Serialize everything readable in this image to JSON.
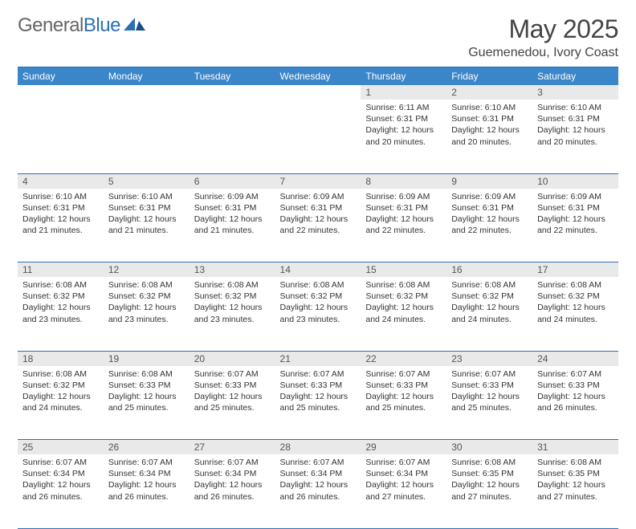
{
  "brand": {
    "general": "General",
    "blue": "Blue"
  },
  "title": "May 2025",
  "location": "Guemenedou, Ivory Coast",
  "colors": {
    "header_bg": "#3b86c8",
    "rule": "#2a6fb5",
    "daynum_bg": "#e9e9e9",
    "logo_blue": "#2a6fb5",
    "logo_dark": "#1a4f85"
  },
  "weekdays": [
    "Sunday",
    "Monday",
    "Tuesday",
    "Wednesday",
    "Thursday",
    "Friday",
    "Saturday"
  ],
  "weeks": [
    [
      {
        "n": "",
        "sr": "",
        "ss": "",
        "dl": ""
      },
      {
        "n": "",
        "sr": "",
        "ss": "",
        "dl": ""
      },
      {
        "n": "",
        "sr": "",
        "ss": "",
        "dl": ""
      },
      {
        "n": "",
        "sr": "",
        "ss": "",
        "dl": ""
      },
      {
        "n": "1",
        "sr": "6:11 AM",
        "ss": "6:31 PM",
        "dl": "12 hours and 20 minutes."
      },
      {
        "n": "2",
        "sr": "6:10 AM",
        "ss": "6:31 PM",
        "dl": "12 hours and 20 minutes."
      },
      {
        "n": "3",
        "sr": "6:10 AM",
        "ss": "6:31 PM",
        "dl": "12 hours and 20 minutes."
      }
    ],
    [
      {
        "n": "4",
        "sr": "6:10 AM",
        "ss": "6:31 PM",
        "dl": "12 hours and 21 minutes."
      },
      {
        "n": "5",
        "sr": "6:10 AM",
        "ss": "6:31 PM",
        "dl": "12 hours and 21 minutes."
      },
      {
        "n": "6",
        "sr": "6:09 AM",
        "ss": "6:31 PM",
        "dl": "12 hours and 21 minutes."
      },
      {
        "n": "7",
        "sr": "6:09 AM",
        "ss": "6:31 PM",
        "dl": "12 hours and 22 minutes."
      },
      {
        "n": "8",
        "sr": "6:09 AM",
        "ss": "6:31 PM",
        "dl": "12 hours and 22 minutes."
      },
      {
        "n": "9",
        "sr": "6:09 AM",
        "ss": "6:31 PM",
        "dl": "12 hours and 22 minutes."
      },
      {
        "n": "10",
        "sr": "6:09 AM",
        "ss": "6:31 PM",
        "dl": "12 hours and 22 minutes."
      }
    ],
    [
      {
        "n": "11",
        "sr": "6:08 AM",
        "ss": "6:32 PM",
        "dl": "12 hours and 23 minutes."
      },
      {
        "n": "12",
        "sr": "6:08 AM",
        "ss": "6:32 PM",
        "dl": "12 hours and 23 minutes."
      },
      {
        "n": "13",
        "sr": "6:08 AM",
        "ss": "6:32 PM",
        "dl": "12 hours and 23 minutes."
      },
      {
        "n": "14",
        "sr": "6:08 AM",
        "ss": "6:32 PM",
        "dl": "12 hours and 23 minutes."
      },
      {
        "n": "15",
        "sr": "6:08 AM",
        "ss": "6:32 PM",
        "dl": "12 hours and 24 minutes."
      },
      {
        "n": "16",
        "sr": "6:08 AM",
        "ss": "6:32 PM",
        "dl": "12 hours and 24 minutes."
      },
      {
        "n": "17",
        "sr": "6:08 AM",
        "ss": "6:32 PM",
        "dl": "12 hours and 24 minutes."
      }
    ],
    [
      {
        "n": "18",
        "sr": "6:08 AM",
        "ss": "6:32 PM",
        "dl": "12 hours and 24 minutes."
      },
      {
        "n": "19",
        "sr": "6:08 AM",
        "ss": "6:33 PM",
        "dl": "12 hours and 25 minutes."
      },
      {
        "n": "20",
        "sr": "6:07 AM",
        "ss": "6:33 PM",
        "dl": "12 hours and 25 minutes."
      },
      {
        "n": "21",
        "sr": "6:07 AM",
        "ss": "6:33 PM",
        "dl": "12 hours and 25 minutes."
      },
      {
        "n": "22",
        "sr": "6:07 AM",
        "ss": "6:33 PM",
        "dl": "12 hours and 25 minutes."
      },
      {
        "n": "23",
        "sr": "6:07 AM",
        "ss": "6:33 PM",
        "dl": "12 hours and 25 minutes."
      },
      {
        "n": "24",
        "sr": "6:07 AM",
        "ss": "6:33 PM",
        "dl": "12 hours and 26 minutes."
      }
    ],
    [
      {
        "n": "25",
        "sr": "6:07 AM",
        "ss": "6:34 PM",
        "dl": "12 hours and 26 minutes."
      },
      {
        "n": "26",
        "sr": "6:07 AM",
        "ss": "6:34 PM",
        "dl": "12 hours and 26 minutes."
      },
      {
        "n": "27",
        "sr": "6:07 AM",
        "ss": "6:34 PM",
        "dl": "12 hours and 26 minutes."
      },
      {
        "n": "28",
        "sr": "6:07 AM",
        "ss": "6:34 PM",
        "dl": "12 hours and 26 minutes."
      },
      {
        "n": "29",
        "sr": "6:07 AM",
        "ss": "6:34 PM",
        "dl": "12 hours and 27 minutes."
      },
      {
        "n": "30",
        "sr": "6:08 AM",
        "ss": "6:35 PM",
        "dl": "12 hours and 27 minutes."
      },
      {
        "n": "31",
        "sr": "6:08 AM",
        "ss": "6:35 PM",
        "dl": "12 hours and 27 minutes."
      }
    ]
  ],
  "labels": {
    "sunrise": "Sunrise:",
    "sunset": "Sunset:",
    "daylight": "Daylight:"
  }
}
